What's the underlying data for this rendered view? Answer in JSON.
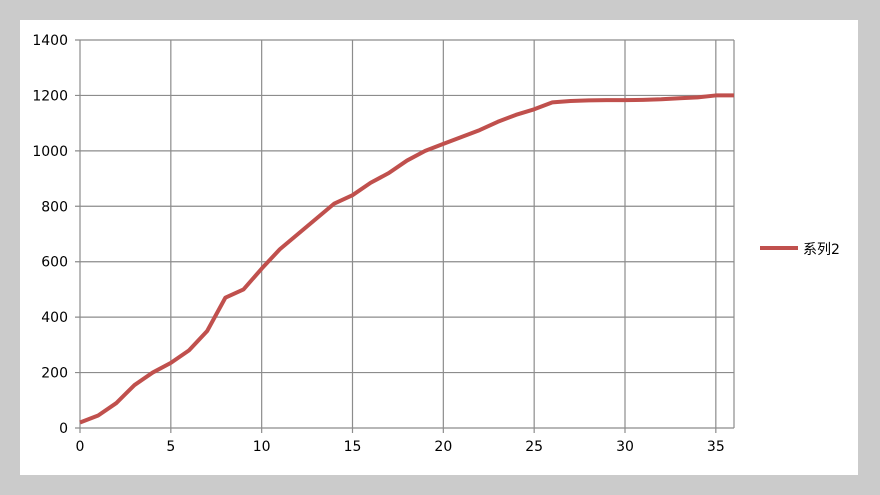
{
  "chart_data": {
    "type": "line",
    "title": "",
    "xlabel": "",
    "ylabel": "",
    "xlim": [
      0,
      36
    ],
    "ylim": [
      0,
      1400
    ],
    "x_ticks": [
      0,
      5,
      10,
      15,
      20,
      25,
      30,
      35
    ],
    "y_ticks": [
      0,
      200,
      400,
      600,
      800,
      1000,
      1200,
      1400
    ],
    "grid": true,
    "legend_position": "right",
    "series": [
      {
        "name": "系列2",
        "color": "#c0504d",
        "x": [
          0,
          1,
          2,
          3,
          4,
          5,
          6,
          7,
          8,
          9,
          10,
          11,
          12,
          13,
          14,
          15,
          16,
          17,
          18,
          19,
          20,
          21,
          22,
          23,
          24,
          25,
          26,
          27,
          28,
          29,
          30,
          31,
          32,
          33,
          34,
          35,
          36
        ],
        "values": [
          20,
          45,
          90,
          155,
          200,
          235,
          280,
          350,
          470,
          500,
          575,
          645,
          700,
          755,
          810,
          840,
          885,
          920,
          965,
          1000,
          1025,
          1050,
          1075,
          1105,
          1130,
          1150,
          1175,
          1180,
          1182,
          1183,
          1183,
          1184,
          1186,
          1190,
          1193,
          1200,
          1200
        ]
      }
    ]
  }
}
